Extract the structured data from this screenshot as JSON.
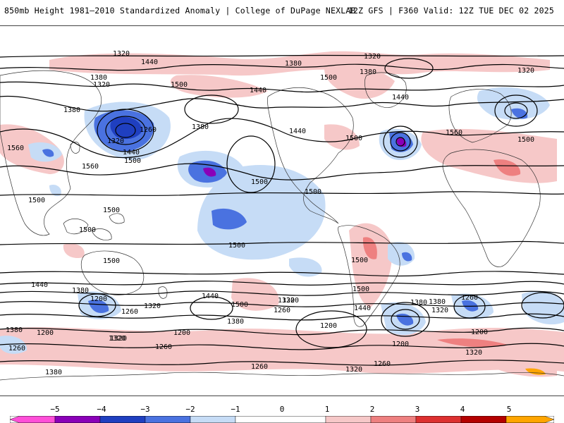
{
  "header": {
    "title": "850mb Height 1981–2010 Standardized Anomaly | College of DuPage NEXLAB",
    "run_info": "12Z GFS | F360 Valid: 12Z TUE DEC 02 2025"
  },
  "colorbar": {
    "ticks": [
      "−5",
      "−4",
      "−3",
      "−2",
      "−1",
      "0",
      "1",
      "2",
      "3",
      "4",
      "5"
    ],
    "colors": [
      "#ff4fd8",
      "#8a00b8",
      "#1f3fc0",
      "#4a72e0",
      "#c6dcf6",
      "#ffffff",
      "#f6c8c8",
      "#ee8080",
      "#dd3030",
      "#b40000",
      "#ffa500"
    ]
  },
  "contour_labels": [
    "1320",
    "1440",
    "1380",
    "1320",
    "1380",
    "1320",
    "1440",
    "1500",
    "1440",
    "1500",
    "1320",
    "1380",
    "1380",
    "1260",
    "1320",
    "1440",
    "1500",
    "1560",
    "1380",
    "1440",
    "1500",
    "1560",
    "1500",
    "1560",
    "1500",
    "1500",
    "1500",
    "1500",
    "1500",
    "1500",
    "1500",
    "1500",
    "1440",
    "1380",
    "1200",
    "1260",
    "1320",
    "1440",
    "1500",
    "1380",
    "1200",
    "1260",
    "1320",
    "1380",
    "1200",
    "1320",
    "1260",
    "1200",
    "1320",
    "1380",
    "1320",
    "1260",
    "1500",
    "1440",
    "1320",
    "1380",
    "1320",
    "1260",
    "1200",
    "1260",
    "1380",
    "1320",
    "1200",
    "1260"
  ]
}
